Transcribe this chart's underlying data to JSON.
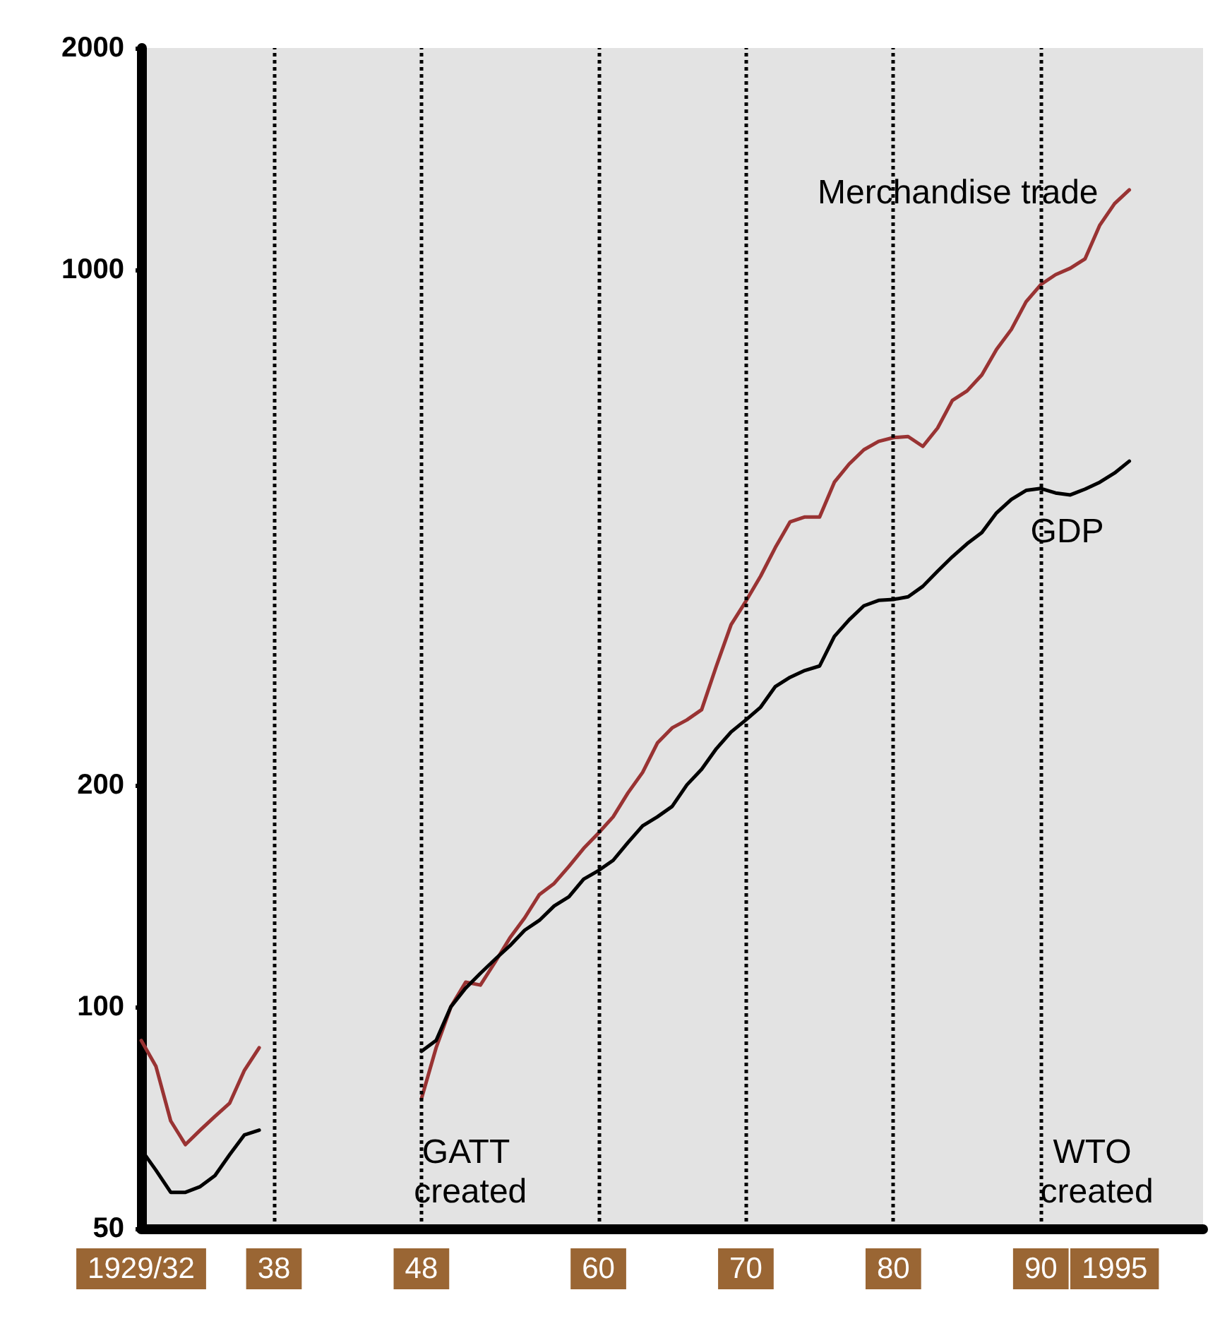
{
  "chart_data": {
    "type": "line",
    "x": [
      1929,
      1930,
      1931,
      1932,
      1933,
      1934,
      1935,
      1936,
      1937,
      1938,
      1939,
      1940,
      1941,
      1942,
      1943,
      1944,
      1945,
      1946,
      1947,
      1948,
      1949,
      1950,
      1951,
      1952,
      1953,
      1954,
      1955,
      1956,
      1957,
      1958,
      1959,
      1960,
      1961,
      1962,
      1963,
      1964,
      1965,
      1966,
      1967,
      1968,
      1969,
      1970,
      1971,
      1972,
      1973,
      1974,
      1975,
      1976,
      1977,
      1978,
      1979,
      1980,
      1981,
      1982,
      1983,
      1984,
      1985,
      1986,
      1987,
      1988,
      1989,
      1990,
      1991,
      1992,
      1993,
      1994,
      1995,
      1996
    ],
    "series": [
      {
        "name": "Merchandise trade",
        "color": "#993333",
        "values": [
          90,
          83,
          70,
          65,
          68,
          71,
          74,
          82,
          88,
          null,
          null,
          null,
          null,
          null,
          null,
          null,
          null,
          null,
          null,
          75,
          88,
          100,
          108,
          107,
          115,
          124,
          132,
          142,
          147,
          155,
          164,
          172,
          181,
          195,
          208,
          228,
          239,
          245,
          253,
          290,
          330,
          355,
          384,
          420,
          455,
          462,
          462,
          515,
          545,
          570,
          585,
          592,
          594,
          576,
          610,
          665,
          685,
          720,
          780,
          830,
          905,
          955,
          985,
          1005,
          1035,
          1150,
          1230,
          1284
        ]
      },
      {
        "name": "GDP",
        "color": "#000000",
        "values": [
          64,
          60,
          56,
          56,
          57,
          59,
          63,
          67,
          68,
          null,
          null,
          null,
          null,
          null,
          null,
          null,
          null,
          null,
          null,
          87,
          90,
          100,
          106,
          111,
          116,
          121,
          127,
          131,
          137,
          141,
          149,
          153,
          158,
          167,
          176,
          181,
          187,
          200,
          210,
          224,
          236,
          245,
          255,
          272,
          280,
          286,
          290,
          318,
          335,
          350,
          356,
          357,
          360,
          372,
          390,
          408,
          425,
          440,
          468,
          488,
          502,
          505,
          498,
          495,
          504,
          515,
          530,
          550
        ]
      }
    ],
    "xlim": [
      1929,
      2001
    ],
    "xticks": [
      {
        "value": 1929,
        "label": "1929/32"
      },
      {
        "value": 1938,
        "label": "38"
      },
      {
        "value": 1948,
        "label": "48"
      },
      {
        "value": 1960,
        "label": "60"
      },
      {
        "value": 1970,
        "label": "70"
      },
      {
        "value": 1980,
        "label": "80"
      },
      {
        "value": 1990,
        "label": "90"
      },
      {
        "value": 1995,
        "label": "1995"
      }
    ],
    "ylim": [
      50,
      2000
    ],
    "yticks": [
      50,
      100,
      200,
      1000,
      2000
    ],
    "log": "y",
    "grid": false,
    "legend": false,
    "marker": "none",
    "line_style": "solid",
    "ref_lines": [
      {
        "axis": "x",
        "value": 1938,
        "color": "#000000",
        "line_style": "dotted"
      },
      {
        "axis": "x",
        "value": 1948,
        "color": "#000000",
        "line_style": "dotted"
      },
      {
        "axis": "x",
        "value": 1960,
        "color": "#000000",
        "line_style": "dotted"
      },
      {
        "axis": "x",
        "value": 1970,
        "color": "#000000",
        "line_style": "dotted"
      },
      {
        "axis": "x",
        "value": 1980,
        "color": "#000000",
        "line_style": "dotted"
      },
      {
        "axis": "x",
        "value": 1990,
        "color": "#000000",
        "line_style": "dotted"
      }
    ],
    "annotations": [
      "GATT created",
      "WTO created"
    ]
  }
}
